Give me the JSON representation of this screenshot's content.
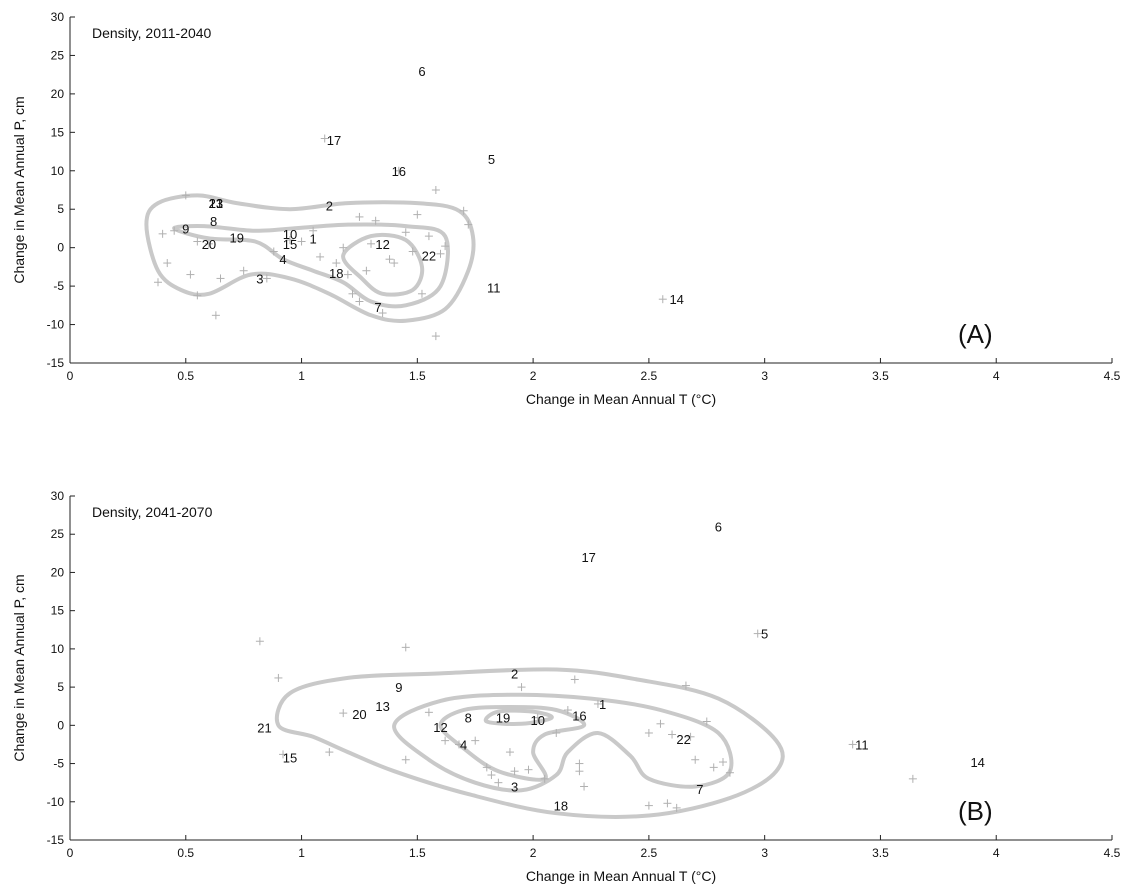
{
  "chart_data": [
    {
      "type": "scatter",
      "panel_label": "(A)",
      "annotation": "Density, 2011-2040",
      "xlabel": "Change in Mean Annual T (°C)",
      "ylabel": "Change in Mean Annual P, cm",
      "xlim": [
        0,
        4.5
      ],
      "ylim": [
        -15,
        30
      ],
      "xticks": [
        "0",
        "0.5",
        "1",
        "1.5",
        "2",
        "2.5",
        "3",
        "3.5",
        "4",
        "4.5"
      ],
      "yticks": [
        "-15",
        "-10",
        "-5",
        "0",
        "5",
        "10",
        "15",
        "20",
        "25",
        "30"
      ],
      "grid": false,
      "labeled_points": [
        {
          "label": "1",
          "x": 1.05,
          "y": 1.2
        },
        {
          "label": "2",
          "x": 1.12,
          "y": 5.5
        },
        {
          "label": "3",
          "x": 0.82,
          "y": -4.0
        },
        {
          "label": "4",
          "x": 0.92,
          "y": -1.5
        },
        {
          "label": "5",
          "x": 1.82,
          "y": 11.5
        },
        {
          "label": "6",
          "x": 1.52,
          "y": 23.0
        },
        {
          "label": "7",
          "x": 1.33,
          "y": -7.7
        },
        {
          "label": "8",
          "x": 0.62,
          "y": 3.5
        },
        {
          "label": "9",
          "x": 0.5,
          "y": 2.5
        },
        {
          "label": "10",
          "x": 0.95,
          "y": 1.8
        },
        {
          "label": "11",
          "x": 1.83,
          "y": -5.2
        },
        {
          "label": "12",
          "x": 1.35,
          "y": 0.5
        },
        {
          "label": "13",
          "x": 0.63,
          "y": 5.8
        },
        {
          "label": "14",
          "x": 2.62,
          "y": -6.7
        },
        {
          "label": "15",
          "x": 0.95,
          "y": 0.5
        },
        {
          "label": "16",
          "x": 1.42,
          "y": 10.0
        },
        {
          "label": "17",
          "x": 1.14,
          "y": 14.0
        },
        {
          "label": "18",
          "x": 1.15,
          "y": -3.3
        },
        {
          "label": "19",
          "x": 0.72,
          "y": 1.3
        },
        {
          "label": "20",
          "x": 0.6,
          "y": 0.5
        },
        {
          "label": "21",
          "x": 0.63,
          "y": 5.8
        },
        {
          "label": "22",
          "x": 1.55,
          "y": -1.0
        },
        {
          "label": "23",
          "x": 0.63,
          "y": 5.8
        }
      ],
      "ensemble_points": [
        {
          "x": 0.4,
          "y": 1.8
        },
        {
          "x": 0.45,
          "y": 2.2
        },
        {
          "x": 0.38,
          "y": -4.5
        },
        {
          "x": 0.42,
          "y": -2.0
        },
        {
          "x": 0.52,
          "y": -3.5
        },
        {
          "x": 0.55,
          "y": -6.2
        },
        {
          "x": 0.5,
          "y": 6.8
        },
        {
          "x": 0.55,
          "y": 0.8
        },
        {
          "x": 0.6,
          "y": 0.5
        },
        {
          "x": 0.63,
          "y": -8.8
        },
        {
          "x": 0.65,
          "y": -4.0
        },
        {
          "x": 0.75,
          "y": -3.0
        },
        {
          "x": 0.85,
          "y": -4.0
        },
        {
          "x": 0.88,
          "y": -0.5
        },
        {
          "x": 0.95,
          "y": 1.0
        },
        {
          "x": 1.0,
          "y": 0.8
        },
        {
          "x": 1.05,
          "y": 2.2
        },
        {
          "x": 1.1,
          "y": 14.2
        },
        {
          "x": 1.15,
          "y": -2.0
        },
        {
          "x": 1.2,
          "y": -3.5
        },
        {
          "x": 1.22,
          "y": -6.0
        },
        {
          "x": 1.25,
          "y": -7.0
        },
        {
          "x": 1.28,
          "y": -3.0
        },
        {
          "x": 1.3,
          "y": 0.5
        },
        {
          "x": 1.32,
          "y": 3.5
        },
        {
          "x": 1.35,
          "y": -8.5
        },
        {
          "x": 1.38,
          "y": -1.5
        },
        {
          "x": 1.4,
          "y": -2.0
        },
        {
          "x": 1.42,
          "y": 10.0
        },
        {
          "x": 1.45,
          "y": 2.0
        },
        {
          "x": 1.48,
          "y": -0.5
        },
        {
          "x": 1.5,
          "y": 4.3
        },
        {
          "x": 1.52,
          "y": -6.0
        },
        {
          "x": 1.55,
          "y": 1.5
        },
        {
          "x": 1.58,
          "y": 7.5
        },
        {
          "x": 1.58,
          "y": -11.5
        },
        {
          "x": 1.6,
          "y": -0.8
        },
        {
          "x": 1.62,
          "y": 0.2
        },
        {
          "x": 1.7,
          "y": 4.8
        },
        {
          "x": 1.72,
          "y": 3.0
        },
        {
          "x": 2.56,
          "y": -6.7
        },
        {
          "x": 1.25,
          "y": 4.0
        },
        {
          "x": 1.18,
          "y": 0.0
        },
        {
          "x": 1.08,
          "y": -1.2
        }
      ],
      "contours": [
        [
          [
            0.33,
            3.0
          ],
          [
            0.38,
            5.8
          ],
          [
            0.55,
            6.8
          ],
          [
            0.72,
            5.8
          ],
          [
            0.95,
            5.0
          ],
          [
            1.2,
            5.8
          ],
          [
            1.5,
            5.8
          ],
          [
            1.68,
            4.8
          ],
          [
            1.74,
            1.5
          ],
          [
            1.72,
            -3.0
          ],
          [
            1.62,
            -8.0
          ],
          [
            1.45,
            -9.5
          ],
          [
            1.3,
            -8.8
          ],
          [
            1.12,
            -6.0
          ],
          [
            0.95,
            -4.0
          ],
          [
            0.78,
            -3.5
          ],
          [
            0.6,
            -6.0
          ],
          [
            0.48,
            -5.5
          ],
          [
            0.38,
            -3.0
          ],
          [
            0.33,
            3.0
          ]
        ],
        [
          [
            0.45,
            2.5
          ],
          [
            0.58,
            2.8
          ],
          [
            0.8,
            2.2
          ],
          [
            1.0,
            2.6
          ],
          [
            1.2,
            3.0
          ],
          [
            1.45,
            2.8
          ],
          [
            1.62,
            1.5
          ],
          [
            1.6,
            -5.0
          ],
          [
            1.45,
            -7.5
          ],
          [
            1.3,
            -7.0
          ],
          [
            1.18,
            -4.5
          ],
          [
            1.05,
            -3.0
          ],
          [
            0.92,
            -1.5
          ],
          [
            0.8,
            0.8
          ],
          [
            0.6,
            1.2
          ],
          [
            0.45,
            2.5
          ]
        ],
        [
          [
            1.18,
            -1.0
          ],
          [
            1.3,
            1.5
          ],
          [
            1.45,
            1.0
          ],
          [
            1.52,
            -2.5
          ],
          [
            1.48,
            -5.5
          ],
          [
            1.35,
            -6.0
          ],
          [
            1.26,
            -4.0
          ],
          [
            1.18,
            -1.0
          ]
        ]
      ]
    },
    {
      "type": "scatter",
      "panel_label": "(B)",
      "annotation": "Density, 2041-2070",
      "xlabel": "Change in Mean Annual T (°C)",
      "ylabel": "Change in Mean Annual P, cm",
      "xlim": [
        0,
        4.5
      ],
      "ylim": [
        -15,
        30
      ],
      "xticks": [
        "0",
        "0.5",
        "1",
        "1.5",
        "2",
        "2.5",
        "3",
        "3.5",
        "4",
        "4.5"
      ],
      "yticks": [
        "-15",
        "-10",
        "-5",
        "0",
        "5",
        "10",
        "15",
        "20",
        "25",
        "30"
      ],
      "grid": false,
      "labeled_points": [
        {
          "label": "1",
          "x": 2.3,
          "y": 2.8
        },
        {
          "label": "2",
          "x": 1.92,
          "y": 6.8
        },
        {
          "label": "3",
          "x": 1.92,
          "y": -8.0
        },
        {
          "label": "4",
          "x": 1.7,
          "y": -2.5
        },
        {
          "label": "5",
          "x": 3.0,
          "y": 12.0
        },
        {
          "label": "6",
          "x": 2.8,
          "y": 26.0
        },
        {
          "label": "7",
          "x": 2.72,
          "y": -8.3
        },
        {
          "label": "8",
          "x": 1.72,
          "y": 1.0
        },
        {
          "label": "9",
          "x": 1.42,
          "y": 5.0
        },
        {
          "label": "10",
          "x": 2.02,
          "y": 0.7
        },
        {
          "label": "11",
          "x": 3.42,
          "y": -2.5
        },
        {
          "label": "12",
          "x": 1.6,
          "y": -0.2
        },
        {
          "label": "13",
          "x": 1.35,
          "y": 2.5
        },
        {
          "label": "14",
          "x": 3.92,
          "y": -4.8
        },
        {
          "label": "15",
          "x": 0.95,
          "y": -4.2
        },
        {
          "label": "16",
          "x": 2.2,
          "y": 1.3
        },
        {
          "label": "17",
          "x": 2.24,
          "y": 22.0
        },
        {
          "label": "18",
          "x": 2.12,
          "y": -10.5
        },
        {
          "label": "19",
          "x": 1.87,
          "y": 1.0
        },
        {
          "label": "20",
          "x": 1.25,
          "y": 1.5
        },
        {
          "label": "21",
          "x": 0.84,
          "y": -0.3
        },
        {
          "label": "22",
          "x": 2.65,
          "y": -1.8
        }
      ],
      "ensemble_points": [
        {
          "x": 0.82,
          "y": 11.0
        },
        {
          "x": 0.9,
          "y": 6.2
        },
        {
          "x": 0.92,
          "y": -3.8
        },
        {
          "x": 1.12,
          "y": -3.5
        },
        {
          "x": 1.18,
          "y": 1.6
        },
        {
          "x": 1.45,
          "y": 10.2
        },
        {
          "x": 1.45,
          "y": -4.5
        },
        {
          "x": 1.55,
          "y": 1.7
        },
        {
          "x": 1.62,
          "y": -2.0
        },
        {
          "x": 1.68,
          "y": -2.5
        },
        {
          "x": 1.75,
          "y": -2.0
        },
        {
          "x": 1.8,
          "y": -5.5
        },
        {
          "x": 1.82,
          "y": -6.5
        },
        {
          "x": 1.85,
          "y": -7.5
        },
        {
          "x": 1.9,
          "y": -3.5
        },
        {
          "x": 1.92,
          "y": -6.0
        },
        {
          "x": 1.95,
          "y": 5.0
        },
        {
          "x": 1.98,
          "y": -5.8
        },
        {
          "x": 2.02,
          "y": 1.0
        },
        {
          "x": 2.05,
          "y": -7.0
        },
        {
          "x": 2.1,
          "y": -1.0
        },
        {
          "x": 2.15,
          "y": 2.0
        },
        {
          "x": 2.18,
          "y": 6.0
        },
        {
          "x": 2.2,
          "y": -5.0
        },
        {
          "x": 2.2,
          "y": -6.0
        },
        {
          "x": 2.22,
          "y": -8.0
        },
        {
          "x": 2.28,
          "y": 2.8
        },
        {
          "x": 2.5,
          "y": -1.0
        },
        {
          "x": 2.5,
          "y": -10.5
        },
        {
          "x": 2.55,
          "y": 0.2
        },
        {
          "x": 2.58,
          "y": -10.2
        },
        {
          "x": 2.6,
          "y": -1.2
        },
        {
          "x": 2.62,
          "y": -10.8
        },
        {
          "x": 2.66,
          "y": 5.2
        },
        {
          "x": 2.68,
          "y": -1.5
        },
        {
          "x": 2.7,
          "y": -4.5
        },
        {
          "x": 2.75,
          "y": 0.5
        },
        {
          "x": 2.78,
          "y": -5.5
        },
        {
          "x": 2.82,
          "y": -4.8
        },
        {
          "x": 2.85,
          "y": -6.2
        },
        {
          "x": 2.97,
          "y": 12.0
        },
        {
          "x": 3.38,
          "y": -2.5
        },
        {
          "x": 3.64,
          "y": -7.0
        }
      ],
      "contours": [
        [
          [
            0.9,
            0.0
          ],
          [
            0.95,
            4.2
          ],
          [
            1.2,
            6.2
          ],
          [
            1.6,
            6.8
          ],
          [
            2.1,
            7.3
          ],
          [
            2.45,
            6.0
          ],
          [
            2.8,
            3.5
          ],
          [
            3.05,
            -2.0
          ],
          [
            3.05,
            -6.0
          ],
          [
            2.85,
            -9.5
          ],
          [
            2.5,
            -11.8
          ],
          [
            2.1,
            -11.5
          ],
          [
            1.72,
            -9.0
          ],
          [
            1.4,
            -6.0
          ],
          [
            1.2,
            -3.5
          ],
          [
            1.05,
            -1.5
          ],
          [
            0.9,
            0.0
          ]
        ],
        [
          [
            1.4,
            0.0
          ],
          [
            1.6,
            3.2
          ],
          [
            1.9,
            4.0
          ],
          [
            2.25,
            3.5
          ],
          [
            2.55,
            2.0
          ],
          [
            2.8,
            -1.0
          ],
          [
            2.85,
            -6.0
          ],
          [
            2.7,
            -8.0
          ],
          [
            2.5,
            -7.0
          ],
          [
            2.42,
            -4.0
          ],
          [
            2.28,
            -1.0
          ],
          [
            2.15,
            -3.5
          ],
          [
            2.1,
            -6.5
          ],
          [
            1.95,
            -8.5
          ],
          [
            1.75,
            -7.5
          ],
          [
            1.55,
            -4.5
          ],
          [
            1.4,
            0.0
          ]
        ],
        [
          [
            1.6,
            0.0
          ],
          [
            1.7,
            2.0
          ],
          [
            1.9,
            2.4
          ],
          [
            2.1,
            2.0
          ],
          [
            2.22,
            0.0
          ],
          [
            2.05,
            -1.2
          ],
          [
            2.0,
            -3.5
          ],
          [
            2.05,
            -7.0
          ],
          [
            1.85,
            -6.0
          ],
          [
            1.7,
            -3.0
          ],
          [
            1.6,
            0.0
          ]
        ],
        [
          [
            1.8,
            0.5
          ],
          [
            1.85,
            1.8
          ],
          [
            2.0,
            1.8
          ],
          [
            2.08,
            1.0
          ],
          [
            1.95,
            0.2
          ],
          [
            1.8,
            0.5
          ]
        ]
      ]
    }
  ]
}
